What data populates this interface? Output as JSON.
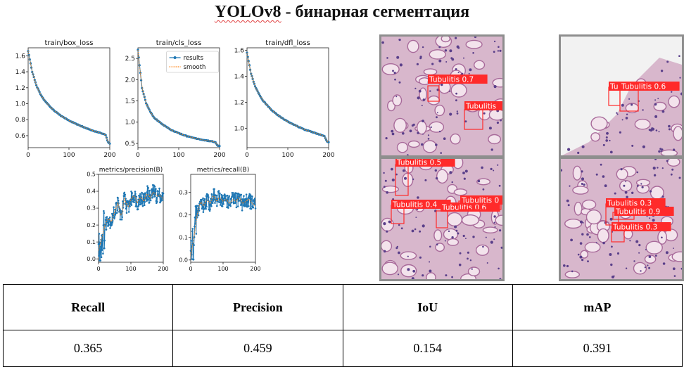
{
  "title": {
    "prefix": "YOLOv8",
    "rest": " - бинарная сегментация"
  },
  "colors": {
    "results": "#1f77b4",
    "smooth": "#ff7f0e",
    "box": "#ff2a2a",
    "tissue": "#d8b7cc",
    "background_white": "#f2f2f2"
  },
  "legend": {
    "results": "results",
    "smooth": "smooth"
  },
  "chart_data": [
    {
      "type": "line",
      "title": "train/box_loss",
      "x_range": [
        0,
        200
      ],
      "ylim": [
        0.45,
        1.7
      ],
      "xticks": [
        0,
        100,
        200
      ],
      "yticks": [
        0.6,
        0.8,
        1.0,
        1.2,
        1.4,
        1.6
      ],
      "curve": "decay",
      "x": [
        0,
        10,
        20,
        30,
        40,
        60,
        80,
        100,
        120,
        140,
        160,
        180,
        190,
        195,
        200
      ],
      "values": [
        1.66,
        1.4,
        1.23,
        1.12,
        1.04,
        0.93,
        0.85,
        0.79,
        0.74,
        0.7,
        0.66,
        0.63,
        0.61,
        0.52,
        0.5
      ]
    },
    {
      "type": "line",
      "title": "train/cls_loss",
      "x_range": [
        0,
        200
      ],
      "ylim": [
        0.4,
        2.75
      ],
      "xticks": [
        0,
        100,
        200
      ],
      "yticks": [
        0.5,
        1.0,
        1.5,
        2.0,
        2.5
      ],
      "curve": "decay",
      "legend": true,
      "x": [
        0,
        10,
        20,
        30,
        40,
        60,
        80,
        100,
        120,
        140,
        160,
        180,
        190,
        195,
        200
      ],
      "values": [
        2.7,
        1.8,
        1.45,
        1.25,
        1.1,
        0.95,
        0.82,
        0.74,
        0.67,
        0.62,
        0.58,
        0.55,
        0.53,
        0.45,
        0.44
      ]
    },
    {
      "type": "line",
      "title": "train/dfl_loss",
      "x_range": [
        0,
        200
      ],
      "ylim": [
        0.85,
        1.62
      ],
      "xticks": [
        0,
        100,
        200
      ],
      "yticks": [
        1.0,
        1.2,
        1.4,
        1.6
      ],
      "curve": "decay",
      "x": [
        0,
        10,
        20,
        30,
        40,
        60,
        80,
        100,
        120,
        140,
        160,
        180,
        190,
        195,
        200
      ],
      "values": [
        1.58,
        1.42,
        1.32,
        1.26,
        1.21,
        1.14,
        1.09,
        1.05,
        1.02,
        0.99,
        0.97,
        0.95,
        0.94,
        0.9,
        0.89
      ]
    },
    {
      "type": "line",
      "title": "metrics/precision(B)",
      "x_range": [
        0,
        200
      ],
      "ylim": [
        -0.02,
        0.5
      ],
      "xticks": [
        0,
        100,
        200
      ],
      "yticks": [
        0.0,
        0.1,
        0.2,
        0.3,
        0.4,
        0.5
      ],
      "curve": "noisy",
      "x": [
        0,
        10,
        20,
        30,
        40,
        50,
        60,
        70,
        80,
        90,
        100,
        110,
        120,
        130,
        140,
        150,
        160,
        170,
        180,
        190,
        200
      ],
      "values": [
        0.05,
        0.12,
        0.2,
        0.24,
        0.22,
        0.28,
        0.33,
        0.24,
        0.36,
        0.3,
        0.35,
        0.38,
        0.33,
        0.37,
        0.34,
        0.39,
        0.36,
        0.4,
        0.37,
        0.38,
        0.35
      ]
    },
    {
      "type": "line",
      "title": "metrics/recall(B)",
      "x_range": [
        0,
        200
      ],
      "ylim": [
        -0.01,
        0.38
      ],
      "xticks": [
        0,
        100,
        200
      ],
      "yticks": [
        0.0,
        0.1,
        0.2,
        0.3
      ],
      "curve": "noisy",
      "x": [
        0,
        10,
        20,
        30,
        40,
        50,
        60,
        70,
        80,
        90,
        100,
        110,
        120,
        130,
        140,
        150,
        160,
        170,
        180,
        190,
        200
      ],
      "values": [
        0.02,
        0.1,
        0.2,
        0.26,
        0.24,
        0.27,
        0.25,
        0.29,
        0.26,
        0.28,
        0.26,
        0.27,
        0.25,
        0.27,
        0.26,
        0.28,
        0.25,
        0.26,
        0.27,
        0.25,
        0.24
      ]
    }
  ],
  "detections": [
    {
      "panel": "top-left",
      "boxes": [
        {
          "label": "Tubulitis 0.7"
        },
        {
          "label": "Tubulitis"
        }
      ]
    },
    {
      "panel": "top-right",
      "boxes": [
        {
          "label": "Tu"
        },
        {
          "label": "Tubulitis 0.6"
        }
      ]
    },
    {
      "panel": "bottom-left",
      "boxes": [
        {
          "label": "Tubulitis 0.5"
        },
        {
          "label": "Tubulitis 0.4"
        },
        {
          "label": "Tubulitis 0.6"
        },
        {
          "label": "Tubulitis 0"
        }
      ]
    },
    {
      "panel": "bottom-right",
      "boxes": [
        {
          "label": "Tubulitis 0.3"
        },
        {
          "label": "Tubulitis 0.9"
        },
        {
          "label": "Tubulitis 0.3"
        }
      ]
    }
  ],
  "table": {
    "headers": [
      "Recall",
      "Precision",
      "IoU",
      "mAP"
    ],
    "values": [
      "0.365",
      "0.459",
      "0.154",
      "0.391"
    ]
  }
}
